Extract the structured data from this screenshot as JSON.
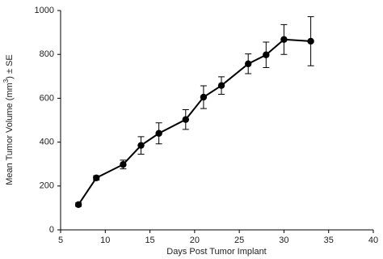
{
  "chart_data": {
    "type": "line",
    "x_label": "Days Post Tumor Implant",
    "y_label": [
      "Mean Tumor Volume (mm",
      "3",
      ") ± SE"
    ],
    "x": [
      7,
      9,
      12,
      14,
      16,
      19,
      21,
      23,
      26,
      28,
      30,
      33
    ],
    "values": [
      115,
      237,
      298,
      385,
      440,
      503,
      605,
      658,
      757,
      798,
      868,
      860
    ],
    "errors": [
      8,
      10,
      20,
      40,
      48,
      45,
      52,
      40,
      45,
      58,
      68,
      112
    ],
    "color": "#000000",
    "xlim": [
      5,
      40
    ],
    "xticks": [
      5,
      10,
      15,
      20,
      25,
      30,
      35,
      40
    ],
    "ylim": [
      0,
      1000
    ],
    "yticks": [
      0,
      200,
      400,
      600,
      800,
      1000
    ],
    "grid": false
  }
}
